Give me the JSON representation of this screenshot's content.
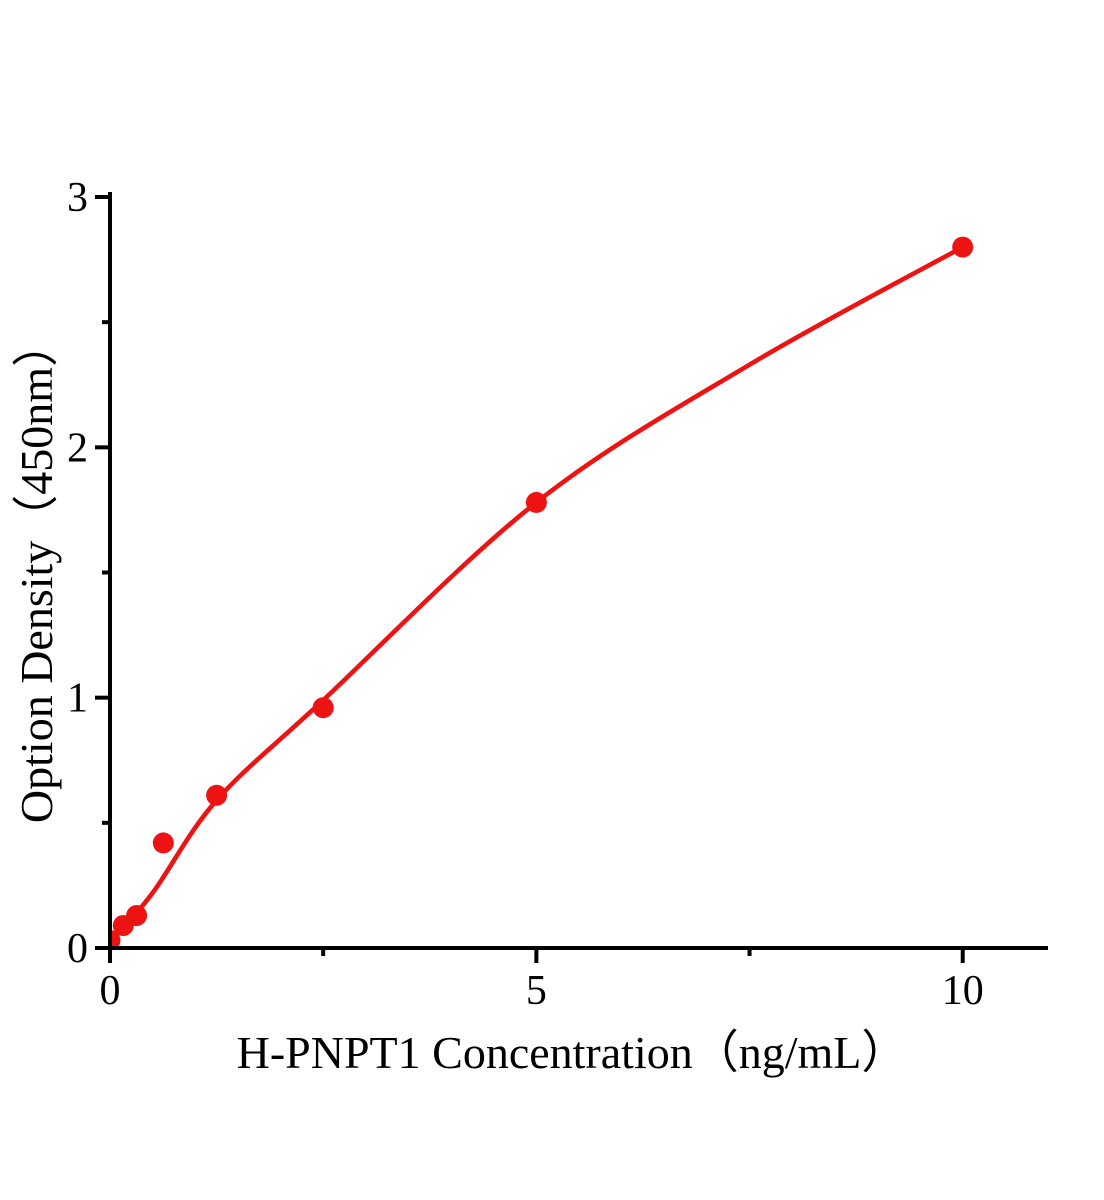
{
  "figure": {
    "description": "ELISA standard curve plot, red fitted curve with red circular data points on white background, black serif axes"
  },
  "chart_data": {
    "type": "scatter",
    "title": "",
    "xlabel": "H-PNPT1 Concentration（ng/mL）",
    "ylabel": "Option Density（450nm）",
    "xlim": [
      0,
      11
    ],
    "ylim": [
      0,
      3.02
    ],
    "x_ticks_major": [
      0,
      5,
      10
    ],
    "x_ticks_minor": [
      2.5,
      7.5
    ],
    "y_ticks_major": [
      0,
      1,
      2,
      3
    ],
    "y_ticks_minor": [
      0.5,
      1.5,
      2.5
    ],
    "grid": false,
    "legend": "none",
    "series": [
      {
        "name": "standard-points",
        "type": "scatter",
        "marker": "circle",
        "color": "#ee1313",
        "x": [
          0,
          0.156,
          0.312,
          0.625,
          1.25,
          2.5,
          5,
          10
        ],
        "y": [
          0.03,
          0.09,
          0.13,
          0.42,
          0.61,
          0.96,
          1.78,
          2.8
        ]
      },
      {
        "name": "fit-curve",
        "type": "line",
        "color": "#ee1313",
        "x": [
          0,
          0.5,
          1.25,
          2.5,
          5,
          7.5,
          10
        ],
        "y": [
          0.02,
          0.22,
          0.59,
          0.99,
          1.78,
          2.33,
          2.8
        ]
      }
    ],
    "colors": {
      "accent_red": "#ee1313",
      "axis_black": "#000000",
      "background": "#ffffff"
    }
  }
}
